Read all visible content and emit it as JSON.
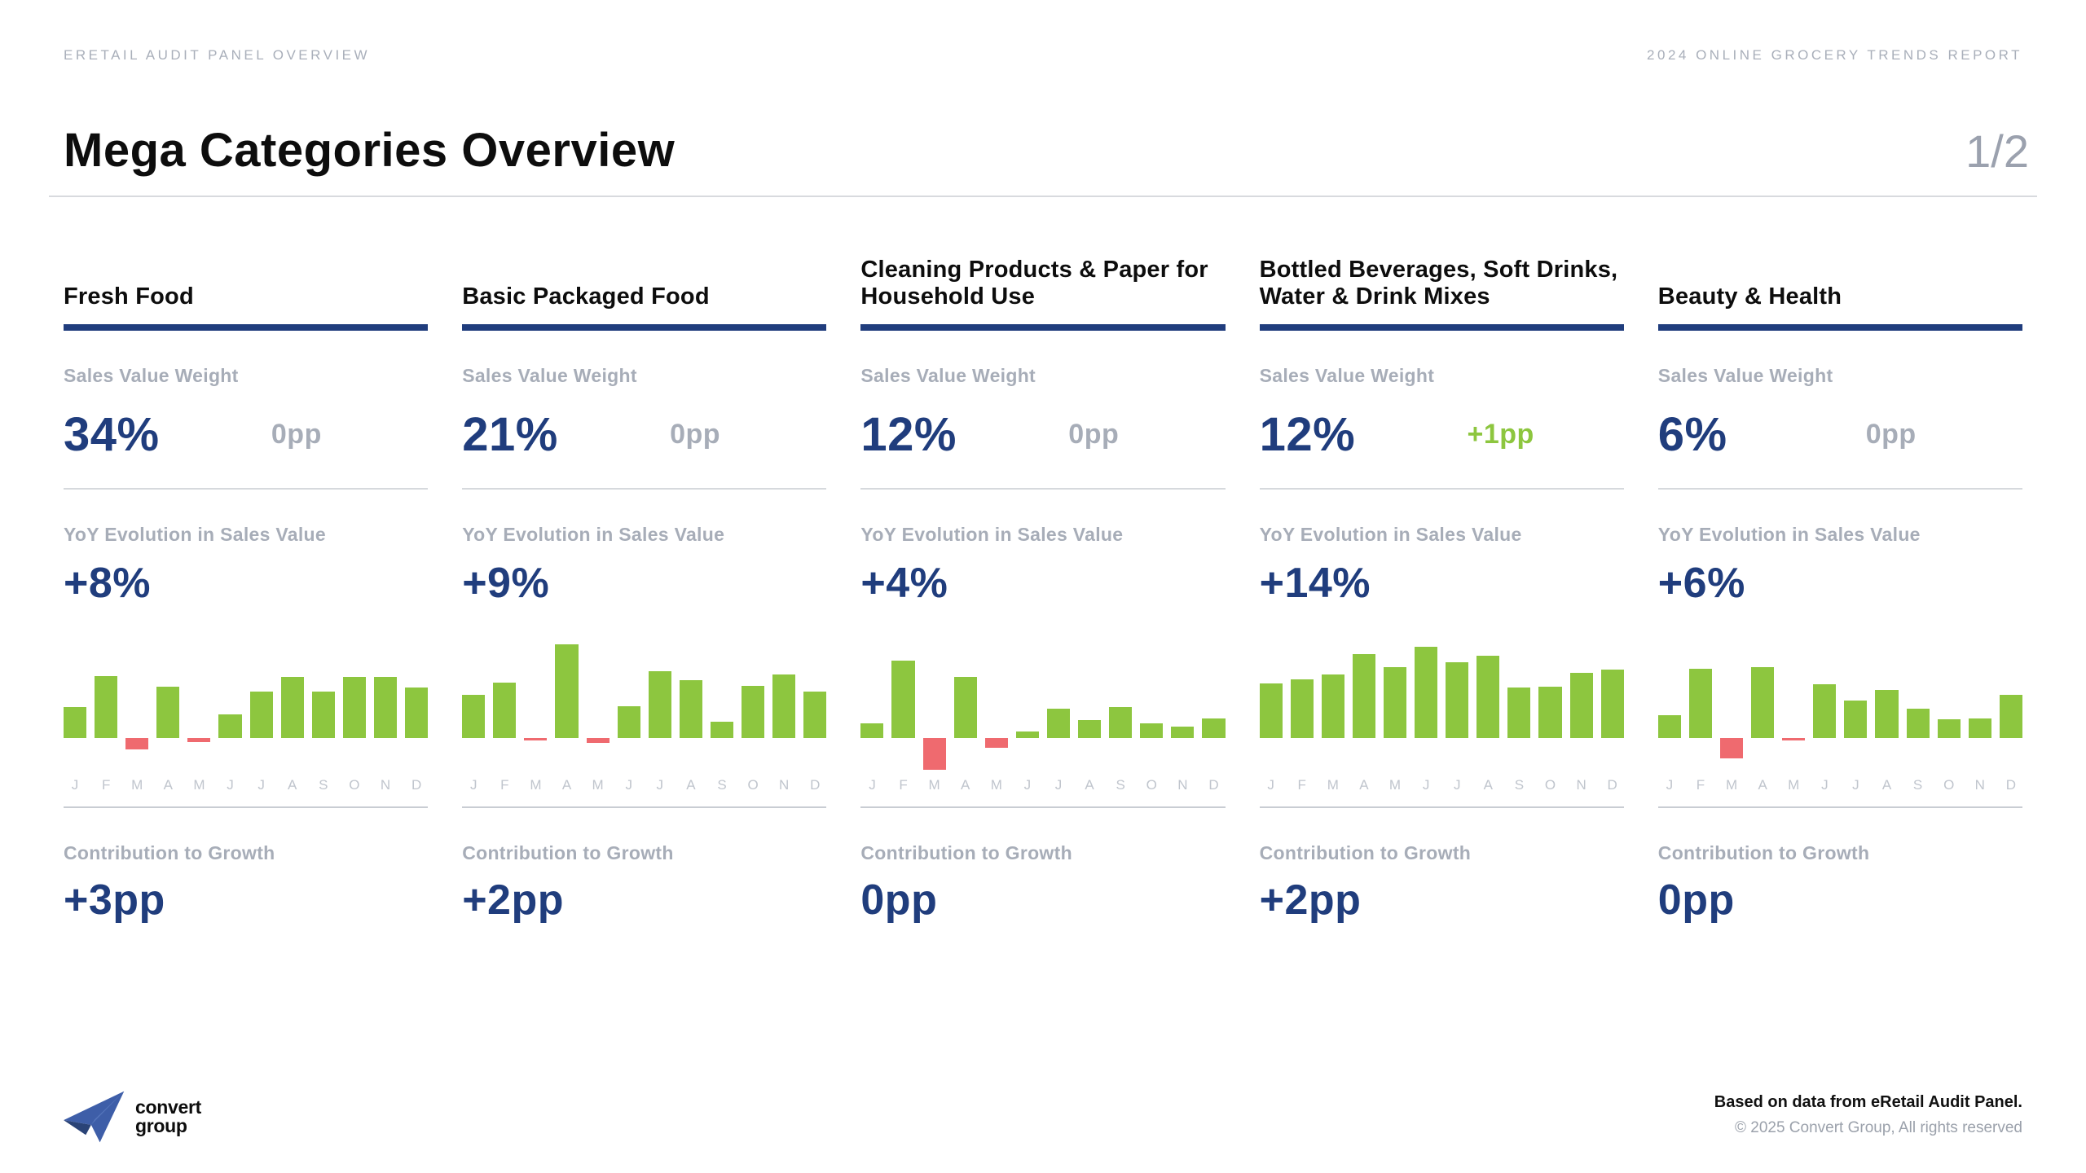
{
  "header": {
    "left": "ERETAIL AUDIT PANEL OVERVIEW",
    "right": "2024 ONLINE GROCERY TRENDS REPORT"
  },
  "title": {
    "text": "Mega Categories Overview",
    "page": "1/2"
  },
  "labels": {
    "sales_value_weight": "Sales Value Weight",
    "yoy": "YoY Evolution in Sales Value",
    "contribution": "Contribution to Growth"
  },
  "colors": {
    "navy": "#203d7d",
    "gray_label": "#a7adb8",
    "green": "#8dc63f",
    "red": "#ef6a6f"
  },
  "categories": [
    {
      "name": "Fresh Food",
      "weight": "34%",
      "change": "0pp",
      "change_color": "#a7adb8",
      "yoy": "+8%",
      "contribution": "+3pp"
    },
    {
      "name": "Basic Packaged Food",
      "weight": "21%",
      "change": "0pp",
      "change_color": "#a7adb8",
      "yoy": "+9%",
      "contribution": "+2pp"
    },
    {
      "name": "Cleaning Products & Paper for Household Use",
      "weight": "12%",
      "change": "0pp",
      "change_color": "#a7adb8",
      "yoy": "+4%",
      "contribution": "0pp"
    },
    {
      "name": "Bottled Beverages, Soft Drinks, Water & Drink Mixes",
      "weight": "12%",
      "change": "+1pp",
      "change_color": "#8dc63f",
      "yoy": "+14%",
      "contribution": "+2pp"
    },
    {
      "name": "Beauty & Health",
      "weight": "6%",
      "change": "0pp",
      "change_color": "#a7adb8",
      "yoy": "+6%",
      "contribution": "0pp"
    }
  ],
  "chart_data": {
    "type": "bar",
    "x": [
      "J",
      "F",
      "M",
      "A",
      "M",
      "J",
      "J",
      "A",
      "S",
      "O",
      "N",
      "D"
    ],
    "note": "Monthly YoY evolution bars; no numeric axis shown. Values are relative heights, 100 = tallest bar across all five charts.",
    "ylim": [
      -35,
      100
    ],
    "grid": false,
    "legend": false,
    "positive_color": "#8dc63f",
    "negative_color": "#ef6a6f",
    "series": [
      {
        "name": "Fresh Food",
        "values": [
          33,
          66,
          -12,
          55,
          -4,
          25,
          50,
          65,
          50,
          65,
          65,
          54
        ]
      },
      {
        "name": "Basic Packaged Food",
        "values": [
          46,
          59,
          -1,
          100,
          -5,
          34,
          71,
          62,
          17,
          56,
          68,
          50
        ]
      },
      {
        "name": "Cleaning Products & Paper for Household Use",
        "values": [
          16,
          83,
          -34,
          65,
          -10,
          7,
          31,
          19,
          33,
          16,
          12,
          21
        ]
      },
      {
        "name": "Bottled Beverages, Soft Drinks, Water & Drink Mixes",
        "values": [
          58,
          63,
          68,
          90,
          76,
          97,
          81,
          88,
          54,
          55,
          70,
          73
        ]
      },
      {
        "name": "Beauty & Health",
        "values": [
          24,
          74,
          -22,
          76,
          -2,
          57,
          40,
          51,
          31,
          20,
          21,
          46
        ]
      }
    ]
  },
  "footer": {
    "logo_line1": "convert",
    "logo_line2": "group",
    "note": "Based on data from eRetail Audit Panel.",
    "copyright": "© 2025 Convert Group, All rights reserved"
  }
}
